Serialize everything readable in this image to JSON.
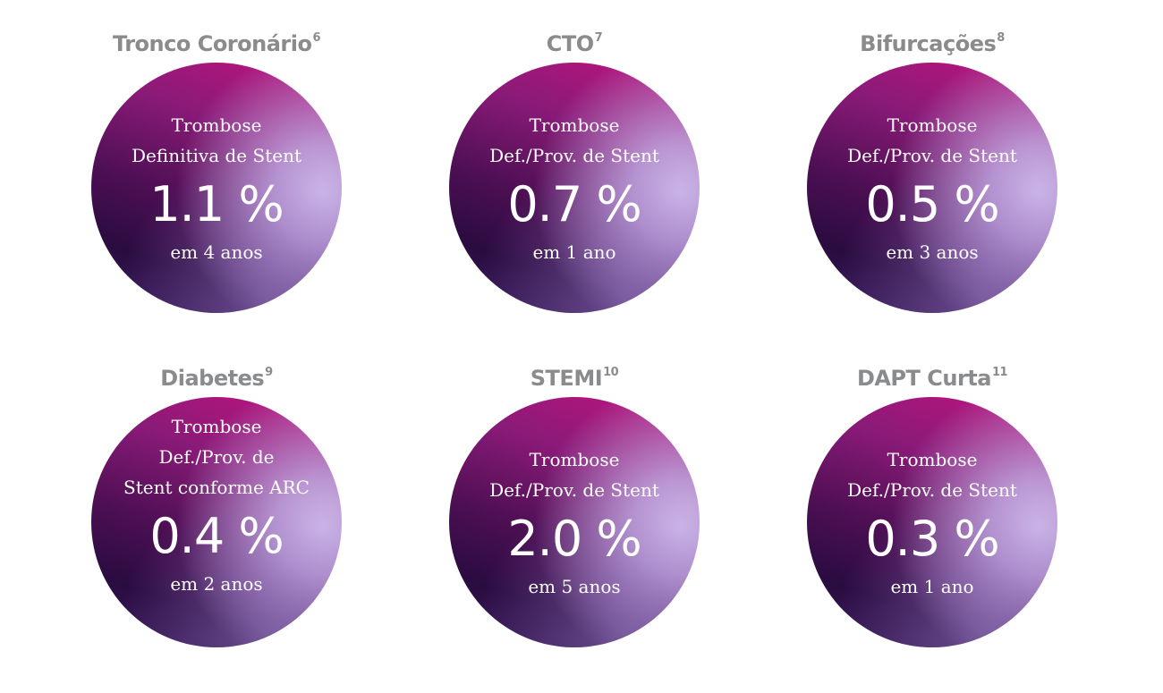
{
  "cards": [
    {
      "title": "Tronco Coronário",
      "ref": "6",
      "lines": [
        "Trombose",
        "Definitiva de Stent",
        ""
      ],
      "value": "1.1 %",
      "period": "em 4 anos"
    },
    {
      "title": "CTO",
      "ref": "7",
      "lines": [
        "Trombose",
        "Def./Prov. de Stent",
        ""
      ],
      "value": "0.7 %",
      "period": "em 1 ano"
    },
    {
      "title": "Bifurcações",
      "ref": "8",
      "lines": [
        "Trombose",
        "Def./Prov. de Stent",
        ""
      ],
      "value": "0.5 %",
      "period": "em 3 anos"
    },
    {
      "title": "Diabetes",
      "ref": "9",
      "lines": [
        "Trombose",
        "Def./Prov. de",
        "Stent conforme ARC"
      ],
      "value": "0.4 %",
      "period": "em 2 anos"
    },
    {
      "title": "STEMI",
      "ref": "10",
      "lines": [
        "Trombose",
        "Def./Prov. de Stent",
        ""
      ],
      "value": "2.0 %",
      "period": "em 5 anos"
    },
    {
      "title": "DAPT Curta",
      "ref": "11",
      "lines": [
        "Trombose",
        "Def./Prov. de Stent",
        ""
      ],
      "value": "0.3 %",
      "period": "em 1 ano"
    }
  ]
}
